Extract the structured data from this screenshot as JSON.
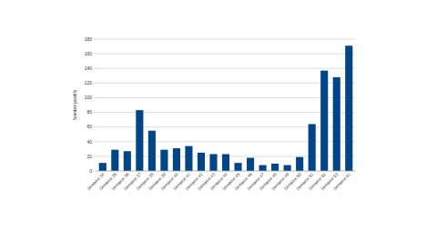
{
  "chart_data": {
    "type": "bar",
    "y_label": "Nombre positifs",
    "categories": [
      "Semaine 34",
      "Semaine 35",
      "Semaine 36",
      "Semaine 37",
      "Semaine 38",
      "Semaine 39",
      "Semaine 40",
      "Semaine 41",
      "Semaine 42",
      "Semaine 43",
      "Semaine 44",
      "Semaine 45",
      "Semaine 46",
      "Semaine 47",
      "Semaine 48",
      "Semaine 49",
      "Semaine 50",
      "Semaine 51",
      "Semaine 52",
      "Semaine 53",
      "Semaine 01"
    ],
    "values": [
      11,
      29,
      27,
      83,
      55,
      29,
      31,
      34,
      25,
      23,
      23,
      11,
      18,
      8,
      10,
      8,
      19,
      64,
      137,
      128,
      171
    ],
    "color": "#004586",
    "ylim": [
      0,
      180
    ],
    "yticks": [
      0,
      20,
      40,
      60,
      80,
      100,
      120,
      140,
      160,
      180
    ],
    "grid": true
  }
}
